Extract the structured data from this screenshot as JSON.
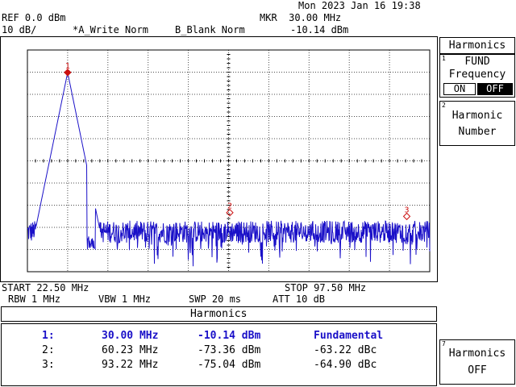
{
  "header": {
    "datetime": "Mon 2023 Jan 16 19:38",
    "ref": "REF 0.0 dBm",
    "scale": "10 dB/",
    "trace_a": "*A_Write Norm",
    "trace_b": "B_Blank Norm",
    "mkr_freq": "MKR  30.00 MHz",
    "mkr_level": "-10.14 dBm"
  },
  "footer": {
    "start": "START 22.50 MHz",
    "stop": "STOP 97.50 MHz",
    "rbw": "RBW 1 MHz",
    "vbw": "VBW 1 MHz",
    "swp": "SWP 20 ms",
    "att": "ATT 10 dB"
  },
  "softkeys": {
    "menu_title": "Harmonics",
    "key1": {
      "index": "1",
      "line1": "FUND",
      "line2": "Frequency",
      "on": "ON",
      "off": "OFF"
    },
    "key2": {
      "index": "2",
      "line1": "Harmonic",
      "line2": "Number"
    },
    "key7": {
      "index": "7",
      "line1": "Harmonics",
      "line2": "OFF"
    }
  },
  "harmonics_table": {
    "title": "Harmonics",
    "rows": [
      {
        "n": "1:",
        "freq": "30.00 MHz",
        "level": "-10.14 dBm",
        "rel": "Fundamental"
      },
      {
        "n": "2:",
        "freq": "60.23 MHz",
        "level": "-73.36 dBm",
        "rel": "-63.22 dBc"
      },
      {
        "n": "3:",
        "freq": "93.22 MHz",
        "level": "-75.04 dBm",
        "rel": "-64.90 dBc"
      }
    ]
  },
  "colors": {
    "trace": "#1a10c8",
    "marker": "#cc1111",
    "grid": "#000000"
  },
  "chart_data": {
    "type": "line",
    "x_range_mhz": [
      22.5,
      97.5
    ],
    "y_range_dbm": [
      -100,
      0
    ],
    "grid": true,
    "markers": [
      {
        "label": "1",
        "x": 30.0,
        "y": -10.14
      },
      {
        "label": "2",
        "x": 60.23,
        "y": -73.36
      },
      {
        "label": "3",
        "x": 93.22,
        "y": -75.04
      }
    ],
    "noise_floor_dbm": -83,
    "peak": {
      "x": 30.0,
      "y": -10.14
    }
  }
}
